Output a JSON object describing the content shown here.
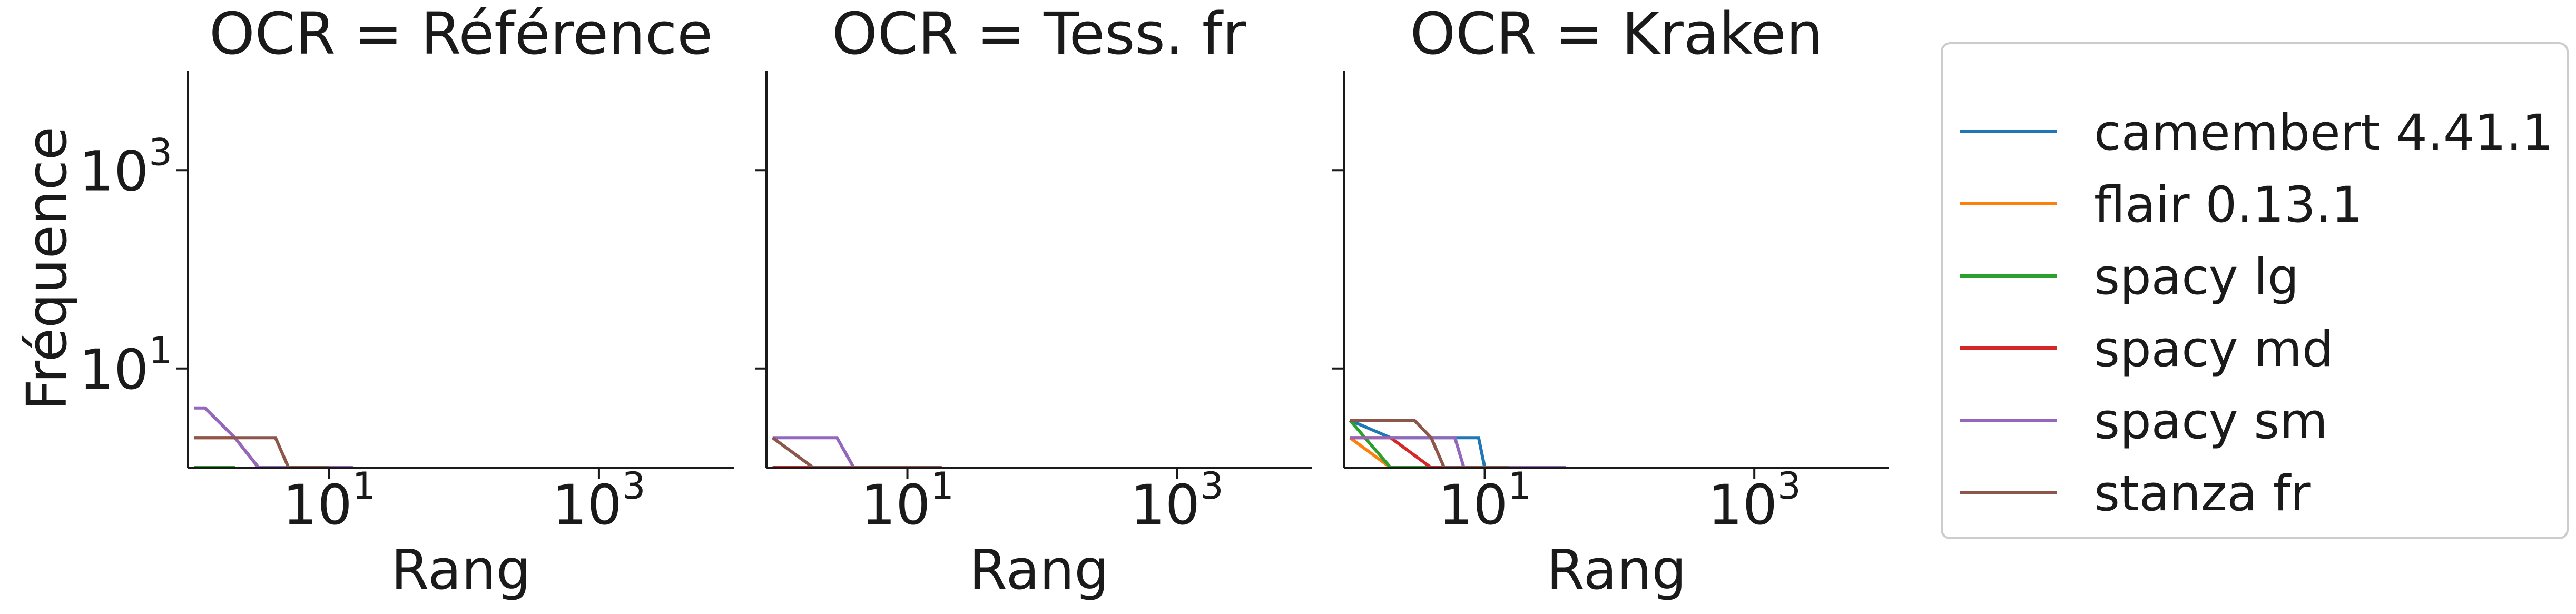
{
  "figure": {
    "ylabel": "Fréquence",
    "xlabel": "Rang",
    "x_scale": "log",
    "y_scale": "log",
    "grid": false,
    "legend_position": "right, outside plots"
  },
  "chart_data": [
    {
      "type": "line",
      "title": "OCR = Référence",
      "xlabel": "Rang",
      "ylabel": "Fréquence",
      "x_scale": "log",
      "y_scale": "log",
      "xlim": [
        0.9,
        10000
      ],
      "ylim": [
        1,
        10000
      ],
      "x_ticks": [
        10,
        1000
      ],
      "y_ticks": [
        10,
        1000
      ],
      "series": [
        {
          "name": "camembert 4.41.1",
          "x": [
            1,
            2
          ],
          "y": [
            1,
            1
          ]
        },
        {
          "name": "flair 0.13.1",
          "x": [
            1,
            2
          ],
          "y": [
            1,
            1
          ]
        },
        {
          "name": "spacy lg",
          "x": [
            1,
            2
          ],
          "y": [
            1,
            1
          ]
        },
        {
          "name": "spacy md",
          "x": [
            1,
            2,
            3,
            4,
            5
          ],
          "y": [
            2,
            2,
            1,
            1,
            1
          ]
        },
        {
          "name": "spacy sm",
          "x": [
            1,
            1.2,
            2,
            3,
            5,
            15
          ],
          "y": [
            4,
            4,
            2,
            1,
            1,
            1
          ]
        },
        {
          "name": "stanza fr",
          "x": [
            1,
            2,
            4,
            5,
            10
          ],
          "y": [
            2,
            2,
            2,
            1,
            1
          ]
        }
      ]
    },
    {
      "type": "line",
      "title": "OCR = Tess. fr",
      "xlabel": "Rang",
      "ylabel": "",
      "x_scale": "log",
      "y_scale": "log",
      "xlim": [
        0.9,
        10000
      ],
      "ylim": [
        1,
        10000
      ],
      "x_ticks": [
        10,
        1000
      ],
      "y_ticks": [
        10,
        1000
      ],
      "series": [
        {
          "name": "camembert 4.41.1",
          "x": [
            1,
            2
          ],
          "y": [
            1,
            1
          ]
        },
        {
          "name": "flair 0.13.1",
          "x": [
            1,
            2
          ],
          "y": [
            1,
            1
          ]
        },
        {
          "name": "spacy lg",
          "x": [
            1,
            2
          ],
          "y": [
            1,
            1
          ]
        },
        {
          "name": "spacy md",
          "x": [
            1,
            2,
            3
          ],
          "y": [
            1,
            1,
            1
          ]
        },
        {
          "name": "spacy sm",
          "x": [
            1,
            3,
            4,
            5,
            10
          ],
          "y": [
            2,
            2,
            1,
            1,
            1
          ]
        },
        {
          "name": "stanza fr",
          "x": [
            1,
            2,
            3,
            5,
            18
          ],
          "y": [
            2,
            1,
            1,
            1,
            1
          ]
        }
      ]
    },
    {
      "type": "line",
      "title": "OCR = Kraken",
      "xlabel": "Rang",
      "ylabel": "",
      "x_scale": "log",
      "y_scale": "log",
      "xlim": [
        0.9,
        10000
      ],
      "ylim": [
        1,
        10000
      ],
      "x_ticks": [
        10,
        1000
      ],
      "y_ticks": [
        10,
        1000
      ],
      "series": [
        {
          "name": "camembert 4.41.1",
          "x": [
            1,
            2,
            9,
            10,
            12
          ],
          "y": [
            3,
            2,
            2,
            1,
            1
          ]
        },
        {
          "name": "flair 0.13.1",
          "x": [
            1,
            2,
            4
          ],
          "y": [
            2,
            1,
            1
          ]
        },
        {
          "name": "spacy lg",
          "x": [
            1,
            2,
            3,
            5
          ],
          "y": [
            3,
            1,
            1,
            1
          ]
        },
        {
          "name": "spacy md",
          "x": [
            1,
            2,
            4,
            6
          ],
          "y": [
            2,
            2,
            1,
            1
          ]
        },
        {
          "name": "spacy sm",
          "x": [
            1,
            2,
            6,
            7,
            40
          ],
          "y": [
            2,
            2,
            2,
            1,
            1
          ]
        },
        {
          "name": "stanza fr",
          "x": [
            1,
            3,
            4,
            5,
            15
          ],
          "y": [
            3,
            3,
            2,
            1,
            1
          ]
        }
      ]
    }
  ],
  "legend": {
    "entries": [
      {
        "label": "camembert 4.41.1",
        "color": "#1f77b4"
      },
      {
        "label": "flair 0.13.1",
        "color": "#ff7f0e"
      },
      {
        "label": "spacy lg",
        "color": "#2ca02c"
      },
      {
        "label": "spacy md",
        "color": "#d62728"
      },
      {
        "label": "spacy sm",
        "color": "#9467bd"
      },
      {
        "label": "stanza fr",
        "color": "#8c564b"
      }
    ]
  }
}
